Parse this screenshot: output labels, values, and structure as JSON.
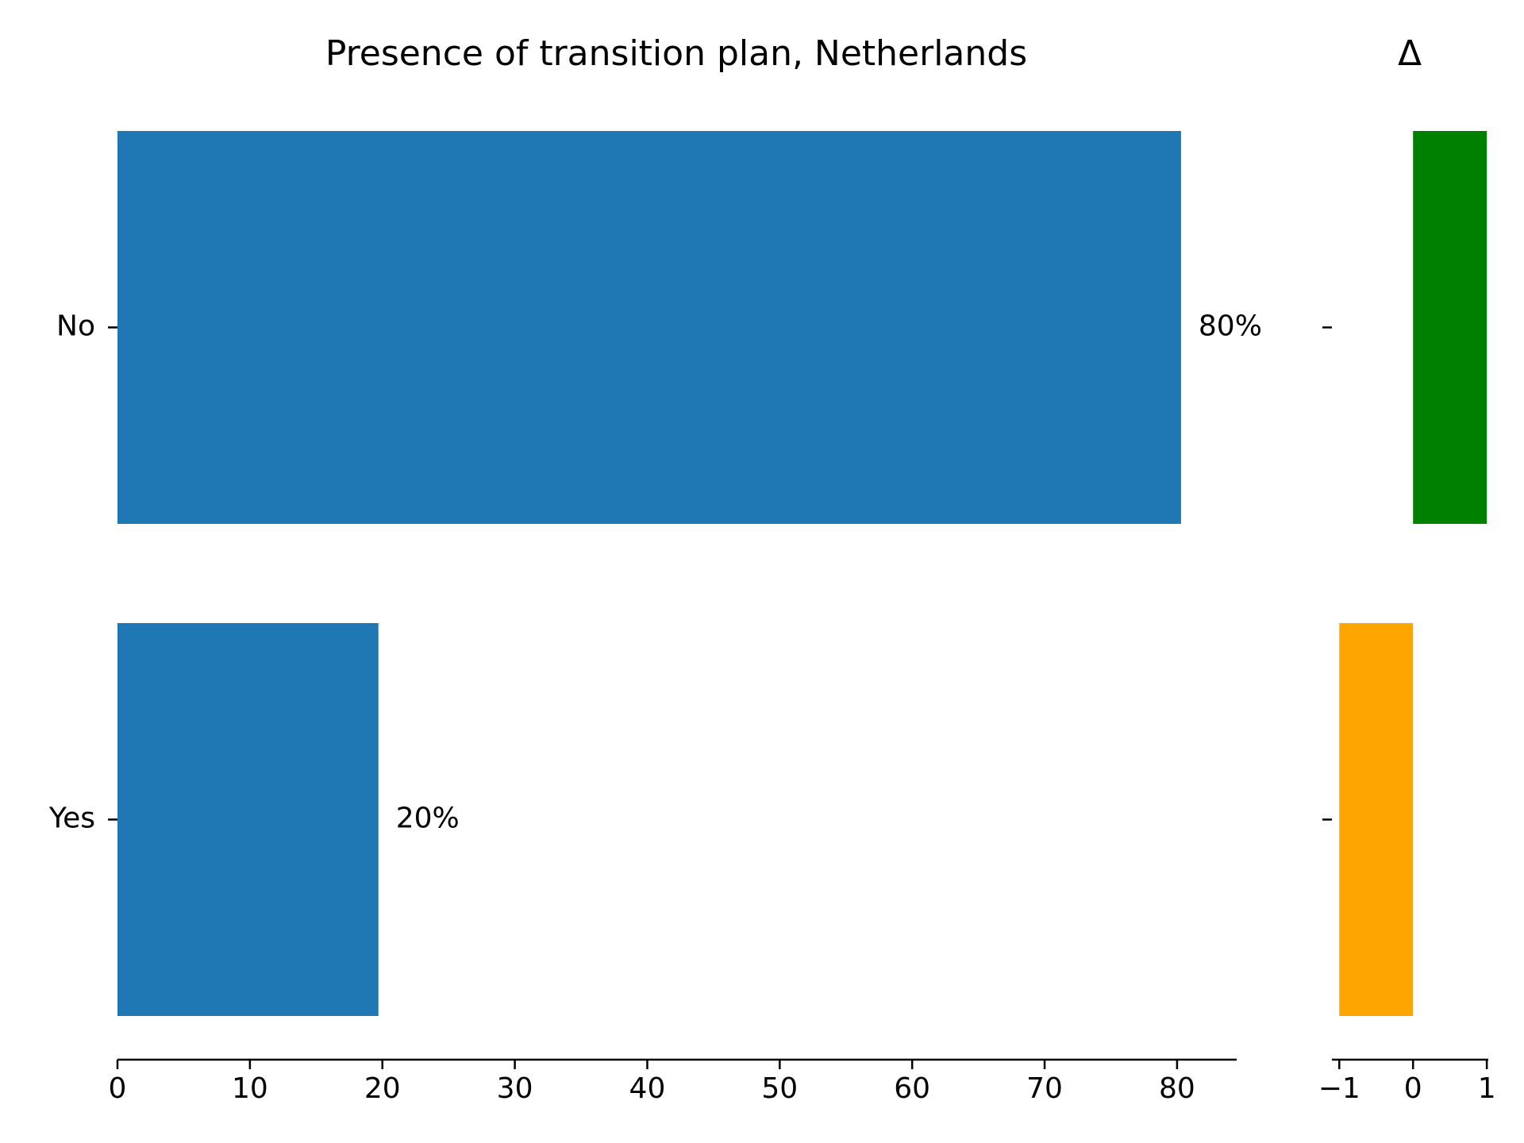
{
  "chart_data": [
    {
      "type": "bar",
      "orientation": "horizontal",
      "title": "Presence of transition plan, Netherlands",
      "categories": [
        "No",
        "Yes"
      ],
      "values": [
        80.3,
        19.7
      ],
      "data_labels": [
        "80%",
        "20%"
      ],
      "x_ticks": [
        "0",
        "10",
        "20",
        "30",
        "40",
        "50",
        "60",
        "70",
        "80"
      ],
      "xlim": [
        0,
        84.5
      ],
      "bar_color": "#1f77b4",
      "grid": false
    },
    {
      "type": "bar",
      "orientation": "horizontal",
      "title": "Δ",
      "categories": [
        "No",
        "Yes"
      ],
      "values": [
        1,
        -1
      ],
      "x_ticks": [
        "−1",
        "0",
        "1"
      ],
      "xlim": [
        -1.1,
        1.02
      ],
      "colors": [
        "#008000",
        "#ffa500"
      ],
      "grid": false
    }
  ]
}
